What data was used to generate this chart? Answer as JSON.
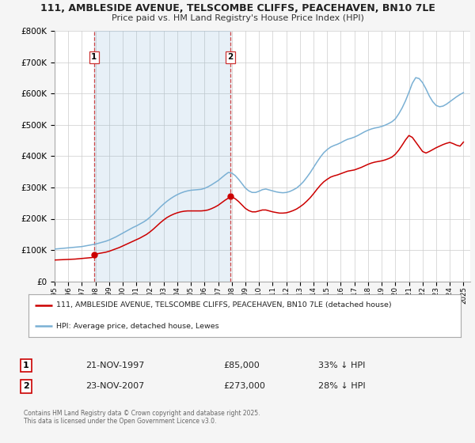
{
  "title_line1": "111, AMBLESIDE AVENUE, TELSCOMBE CLIFFS, PEACEHAVEN, BN10 7LE",
  "title_line2": "Price paid vs. HM Land Registry's House Price Index (HPI)",
  "legend_label_red": "111, AMBLESIDE AVENUE, TELSCOMBE CLIFFS, PEACEHAVEN, BN10 7LE (detached house)",
  "legend_label_blue": "HPI: Average price, detached house, Lewes",
  "transaction1_date": "21-NOV-1997",
  "transaction1_price": "£85,000",
  "transaction1_info": "33% ↓ HPI",
  "transaction1_year": 1997.9,
  "transaction1_value": 85000,
  "transaction2_date": "23-NOV-2007",
  "transaction2_price": "£273,000",
  "transaction2_info": "28% ↓ HPI",
  "transaction2_year": 2007.9,
  "transaction2_value": 273000,
  "footer": "Contains HM Land Registry data © Crown copyright and database right 2025.\nThis data is licensed under the Open Government Licence v3.0.",
  "red_color": "#cc0000",
  "blue_color": "#7ab0d4",
  "shade_color": "#ddeeff",
  "vline_color": "#cc3333",
  "background_color": "#f5f5f5",
  "plot_bg_color": "#ffffff",
  "ylim": [
    0,
    800000
  ],
  "xlim_start": 1995,
  "xlim_end": 2025.5,
  "hpi_years": [
    1995.0,
    1995.25,
    1995.5,
    1995.75,
    1996.0,
    1996.25,
    1996.5,
    1996.75,
    1997.0,
    1997.25,
    1997.5,
    1997.75,
    1998.0,
    1998.25,
    1998.5,
    1998.75,
    1999.0,
    1999.25,
    1999.5,
    1999.75,
    2000.0,
    2000.25,
    2000.5,
    2000.75,
    2001.0,
    2001.25,
    2001.5,
    2001.75,
    2002.0,
    2002.25,
    2002.5,
    2002.75,
    2003.0,
    2003.25,
    2003.5,
    2003.75,
    2004.0,
    2004.25,
    2004.5,
    2004.75,
    2005.0,
    2005.25,
    2005.5,
    2005.75,
    2006.0,
    2006.25,
    2006.5,
    2006.75,
    2007.0,
    2007.25,
    2007.5,
    2007.75,
    2008.0,
    2008.25,
    2008.5,
    2008.75,
    2009.0,
    2009.25,
    2009.5,
    2009.75,
    2010.0,
    2010.25,
    2010.5,
    2010.75,
    2011.0,
    2011.25,
    2011.5,
    2011.75,
    2012.0,
    2012.25,
    2012.5,
    2012.75,
    2013.0,
    2013.25,
    2013.5,
    2013.75,
    2014.0,
    2014.25,
    2014.5,
    2014.75,
    2015.0,
    2015.25,
    2015.5,
    2015.75,
    2016.0,
    2016.25,
    2016.5,
    2016.75,
    2017.0,
    2017.25,
    2017.5,
    2017.75,
    2018.0,
    2018.25,
    2018.5,
    2018.75,
    2019.0,
    2019.25,
    2019.5,
    2019.75,
    2020.0,
    2020.25,
    2020.5,
    2020.75,
    2021.0,
    2021.25,
    2021.5,
    2021.75,
    2022.0,
    2022.25,
    2022.5,
    2022.75,
    2023.0,
    2023.25,
    2023.5,
    2023.75,
    2024.0,
    2024.25,
    2024.5,
    2024.75,
    2025.0
  ],
  "hpi_values": [
    103000,
    104000,
    105000,
    106000,
    107000,
    108000,
    109000,
    110000,
    111000,
    113000,
    115000,
    117000,
    119000,
    122000,
    125000,
    128000,
    132000,
    137000,
    142000,
    148000,
    154000,
    160000,
    166000,
    172000,
    177000,
    183000,
    189000,
    196000,
    205000,
    215000,
    226000,
    237000,
    247000,
    256000,
    264000,
    271000,
    277000,
    282000,
    286000,
    289000,
    291000,
    292000,
    293000,
    294000,
    297000,
    302000,
    308000,
    315000,
    322000,
    331000,
    340000,
    348000,
    346000,
    338000,
    326000,
    312000,
    298000,
    289000,
    284000,
    284000,
    288000,
    293000,
    295000,
    292000,
    289000,
    286000,
    284000,
    283000,
    284000,
    287000,
    292000,
    298000,
    307000,
    318000,
    332000,
    347000,
    364000,
    381000,
    397000,
    411000,
    421000,
    429000,
    434000,
    438000,
    443000,
    449000,
    454000,
    457000,
    461000,
    466000,
    472000,
    478000,
    483000,
    487000,
    490000,
    492000,
    495000,
    499000,
    504000,
    510000,
    519000,
    535000,
    554000,
    577000,
    604000,
    633000,
    651000,
    648000,
    635000,
    615000,
    592000,
    574000,
    562000,
    558000,
    560000,
    566000,
    574000,
    582000,
    590000,
    597000,
    603000
  ],
  "red_years": [
    1995.0,
    1995.25,
    1995.5,
    1995.75,
    1996.0,
    1996.25,
    1996.5,
    1996.75,
    1997.0,
    1997.25,
    1997.5,
    1997.75,
    1997.9,
    1998.0,
    1998.25,
    1998.5,
    1998.75,
    1999.0,
    1999.25,
    1999.5,
    1999.75,
    2000.0,
    2000.25,
    2000.5,
    2000.75,
    2001.0,
    2001.25,
    2001.5,
    2001.75,
    2002.0,
    2002.25,
    2002.5,
    2002.75,
    2003.0,
    2003.25,
    2003.5,
    2003.75,
    2004.0,
    2004.25,
    2004.5,
    2004.75,
    2005.0,
    2005.25,
    2005.5,
    2005.75,
    2006.0,
    2006.25,
    2006.5,
    2006.75,
    2007.0,
    2007.25,
    2007.5,
    2007.75,
    2007.9,
    2008.0,
    2008.25,
    2008.5,
    2008.75,
    2009.0,
    2009.25,
    2009.5,
    2009.75,
    2010.0,
    2010.25,
    2010.5,
    2010.75,
    2011.0,
    2011.25,
    2011.5,
    2011.75,
    2012.0,
    2012.25,
    2012.5,
    2012.75,
    2013.0,
    2013.25,
    2013.5,
    2013.75,
    2014.0,
    2014.25,
    2014.5,
    2014.75,
    2015.0,
    2015.25,
    2015.5,
    2015.75,
    2016.0,
    2016.25,
    2016.5,
    2016.75,
    2017.0,
    2017.25,
    2017.5,
    2017.75,
    2018.0,
    2018.25,
    2018.5,
    2018.75,
    2019.0,
    2019.25,
    2019.5,
    2019.75,
    2020.0,
    2020.25,
    2020.5,
    2020.75,
    2021.0,
    2021.25,
    2021.5,
    2021.75,
    2022.0,
    2022.25,
    2022.5,
    2022.75,
    2023.0,
    2023.25,
    2023.5,
    2023.75,
    2024.0,
    2024.25,
    2024.5,
    2024.75,
    2025.0
  ],
  "red_values": [
    68000,
    68500,
    69000,
    69500,
    70000,
    70500,
    71000,
    72000,
    73000,
    74000,
    75000,
    76000,
    85000,
    87000,
    89000,
    91000,
    93000,
    96000,
    100000,
    104000,
    108000,
    113000,
    118000,
    123000,
    128000,
    133000,
    138000,
    144000,
    150000,
    158000,
    167000,
    177000,
    187000,
    196000,
    204000,
    210000,
    215000,
    219000,
    222000,
    224000,
    225000,
    225000,
    225000,
    225000,
    225000,
    226000,
    228000,
    232000,
    237000,
    243000,
    251000,
    259000,
    266000,
    273000,
    270000,
    264000,
    255000,
    244000,
    233000,
    226000,
    222000,
    222000,
    225000,
    228000,
    228000,
    225000,
    222000,
    220000,
    218000,
    218000,
    219000,
    222000,
    226000,
    231000,
    238000,
    246000,
    256000,
    267000,
    280000,
    294000,
    307000,
    318000,
    326000,
    333000,
    337000,
    340000,
    344000,
    348000,
    352000,
    354000,
    356000,
    360000,
    364000,
    369000,
    374000,
    378000,
    381000,
    383000,
    385000,
    388000,
    392000,
    397000,
    406000,
    419000,
    435000,
    452000,
    466000,
    460000,
    445000,
    430000,
    415000,
    410000,
    415000,
    421000,
    427000,
    432000,
    437000,
    441000,
    444000,
    440000,
    435000,
    432000,
    445000
  ]
}
